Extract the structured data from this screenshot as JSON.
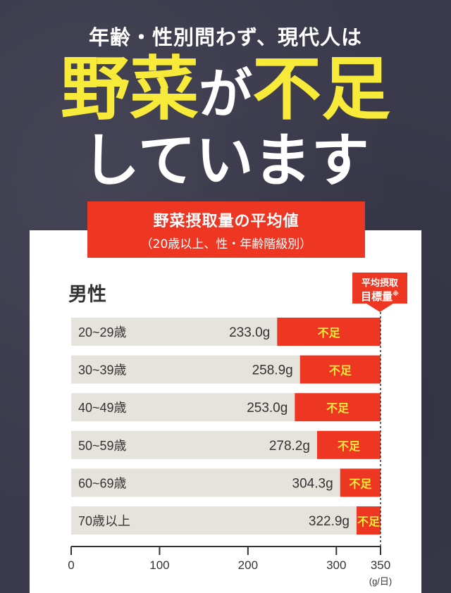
{
  "header": {
    "subtitle": "年齢・性別問わず、現代人は",
    "headline_part1": "野菜",
    "headline_part2": "が",
    "headline_part3": "不足",
    "headline_line2": "しています"
  },
  "banner": {
    "title": "野菜摂取量の平均値",
    "subtitle": "（20歳以上、性・年齢階級別）"
  },
  "target_label": {
    "line1": "平均摂取",
    "line2": "目標量",
    "note_mark": "※"
  },
  "colors": {
    "bar_gray": "#e6e2dc",
    "shortfall_red": "#ee3723",
    "shortfall_text": "#f8ea39",
    "background": "#3a3a4c"
  },
  "chart_data": {
    "type": "bar",
    "orientation": "horizontal",
    "title": "野菜摂取量の平均値",
    "subtitle": "（20歳以上、性・年齢階級別）",
    "group": "男性",
    "categories": [
      "20~29歳",
      "30~39歳",
      "40~49歳",
      "50~59歳",
      "60~69歳",
      "70歳以上"
    ],
    "values": [
      233.0,
      258.9,
      253.0,
      278.2,
      304.3,
      322.9
    ],
    "value_labels": [
      "233.0g",
      "258.9g",
      "253.0g",
      "278.2g",
      "304.3g",
      "322.9g"
    ],
    "target": 350,
    "shortfall_label": "不足",
    "xlim": [
      0,
      350
    ],
    "x_ticks": [
      "0",
      "100",
      "200",
      "300",
      "350"
    ],
    "x_tick_values": [
      0,
      100,
      200,
      300,
      350
    ],
    "unit": "(g/日)"
  }
}
